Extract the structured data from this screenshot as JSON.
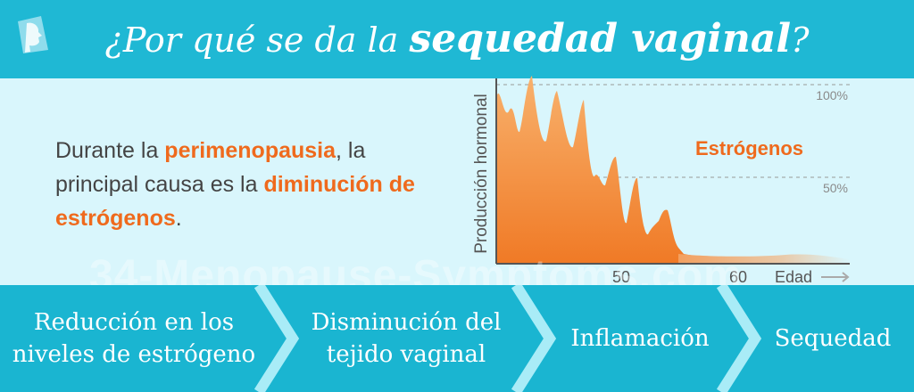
{
  "header": {
    "title_plain": "¿Por qué se da la",
    "title_emphasis": "sequedad vaginal",
    "title_end": "?",
    "logo_icon": "face-profile-icon"
  },
  "description": {
    "part1": "Durante la ",
    "highlight1": "perimenopausia",
    "part2": ", la principal causa es la ",
    "highlight2": "diminución de estrógenos",
    "part3": "."
  },
  "chart_data": {
    "type": "area",
    "title": "",
    "ylabel": "Producción hormonal",
    "xlabel": "Edad",
    "x_ticks": [
      "50",
      "60"
    ],
    "y_ticks": [
      "100%",
      "50%"
    ],
    "series": [
      {
        "name": "Estrógenos"
      }
    ],
    "colors": {
      "fill_top": "#f6a35a",
      "fill_bottom": "#f07a26",
      "label": "#ef6a1d"
    }
  },
  "watermark": "34-Menopause-Symptoms.com",
  "steps": [
    {
      "line1": "Reducción en los",
      "line2": "niveles de estrógeno"
    },
    {
      "line1": "Disminución del",
      "line2": "tejido vaginal"
    },
    {
      "line1": "Inflamación",
      "line2": ""
    },
    {
      "line1": "Sequedad",
      "line2": ""
    }
  ]
}
